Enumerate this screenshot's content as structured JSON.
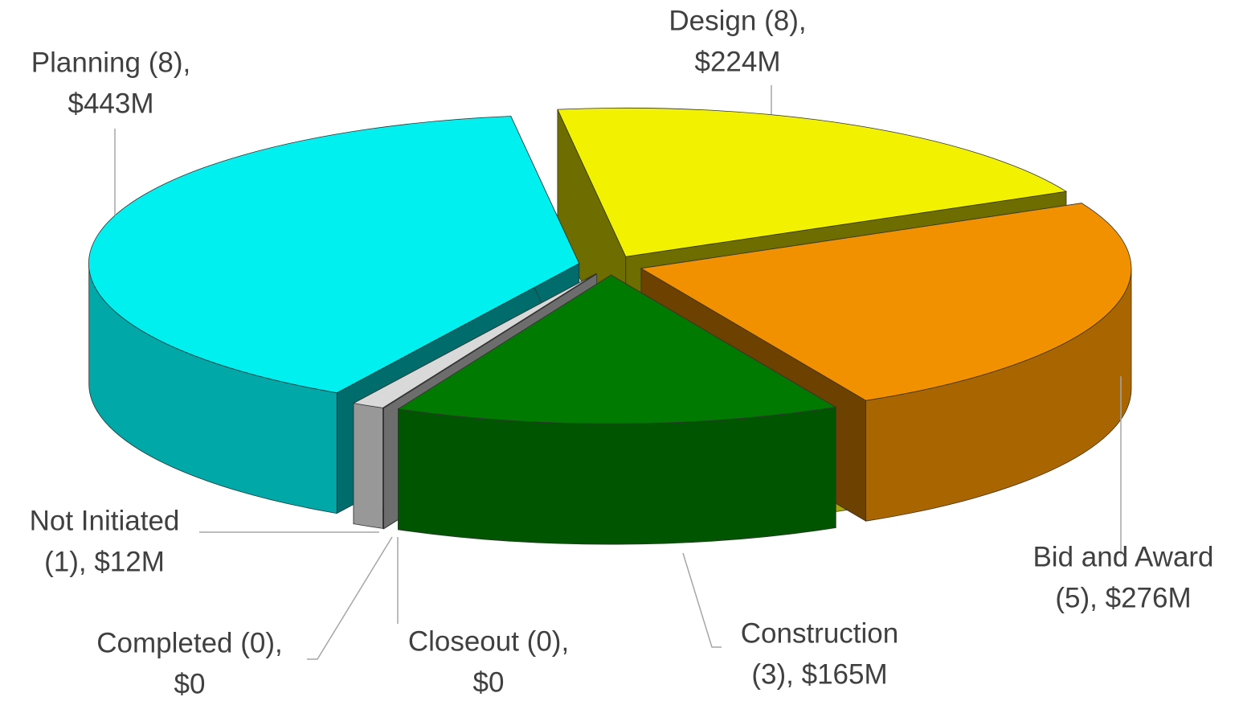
{
  "chart_data": {
    "type": "pie3d",
    "categories": [
      [
        "Design (8),",
        "$224M"
      ],
      [
        "Bid and Award",
        "(5), $276M"
      ],
      [
        "Construction",
        "(3), $165M"
      ],
      [
        "Closeout (0),",
        "$0"
      ],
      [
        "Completed (0),",
        "$0"
      ],
      [
        "Not Initiated",
        "(1), $12M"
      ],
      [
        "Planning (8),",
        "$443M"
      ]
    ],
    "values": [
      224,
      276,
      165,
      0,
      0,
      12,
      443
    ],
    "colors": [
      "#f2f200",
      "#f29100",
      "#007a00",
      "#1f3864",
      "#f2f2f2",
      "#d9d9d9",
      "#00f0f0"
    ]
  }
}
